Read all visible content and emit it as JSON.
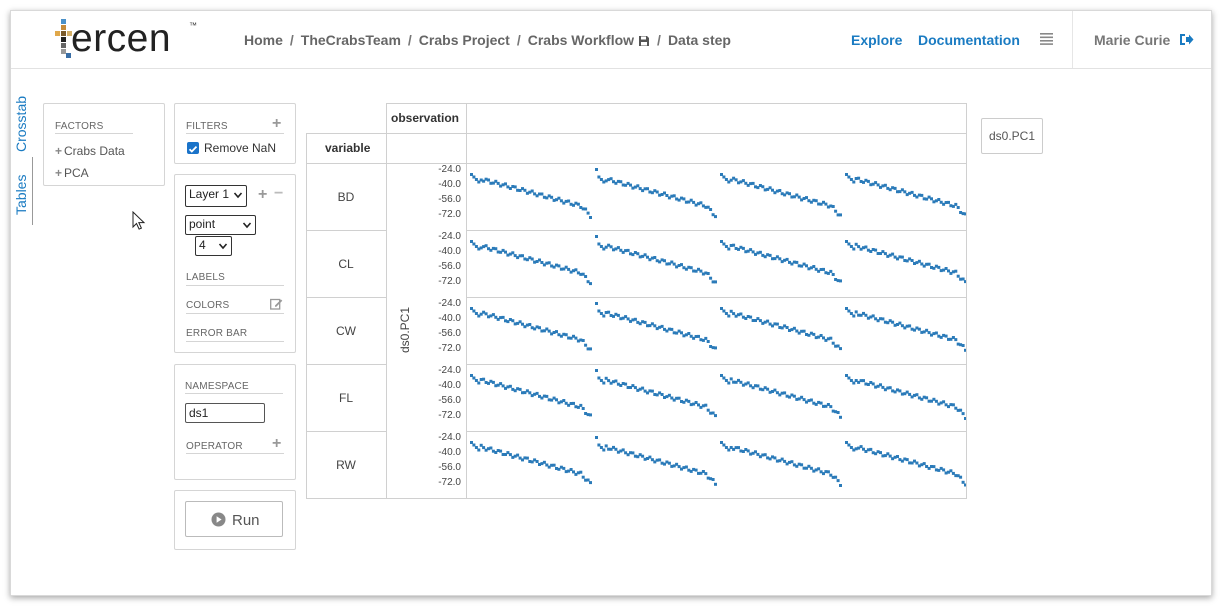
{
  "header": {
    "logo_text": "ercen",
    "logo_tm": "™",
    "breadcrumb": [
      "Home",
      "TheCrabsTeam",
      "Crabs Project",
      "Crabs Workflow",
      "Data step"
    ],
    "breadcrumb_separator": "/",
    "nav": {
      "explore": "Explore",
      "documentation": "Documentation"
    },
    "user": "Marie Curie",
    "icons": [
      "save-icon",
      "menu-icon",
      "logout-icon"
    ]
  },
  "side_tabs": {
    "crosstab": "Crosstab",
    "tables": "Tables"
  },
  "factors": {
    "title": "FACTORS",
    "items": [
      "Crabs Data",
      "PCA"
    ]
  },
  "filters": {
    "title": "FILTERS",
    "remove_nan": {
      "label": "Remove NaN",
      "checked": true
    }
  },
  "layer": {
    "layer_select": "Layer 1",
    "chart_type": "point",
    "point_size": "4",
    "labels_title": "LABELS",
    "colors_title": "COLORS",
    "error_bar_title": "ERROR BAR"
  },
  "namespace": {
    "title": "NAMESPACE",
    "value": "ds1",
    "operator_title": "OPERATOR"
  },
  "run_button": "Run",
  "crosstab": {
    "col_header": "observation",
    "row_header": "variable",
    "y_axis_label": "ds0.PC1",
    "rows": [
      "BD",
      "CL",
      "CW",
      "FL",
      "RW"
    ],
    "y_ticks": [
      "-24.0",
      "-40.0",
      "-56.0",
      "-72.0"
    ],
    "accent": "#2b7bb9"
  },
  "projection": {
    "label": "ds0.PC1"
  }
}
